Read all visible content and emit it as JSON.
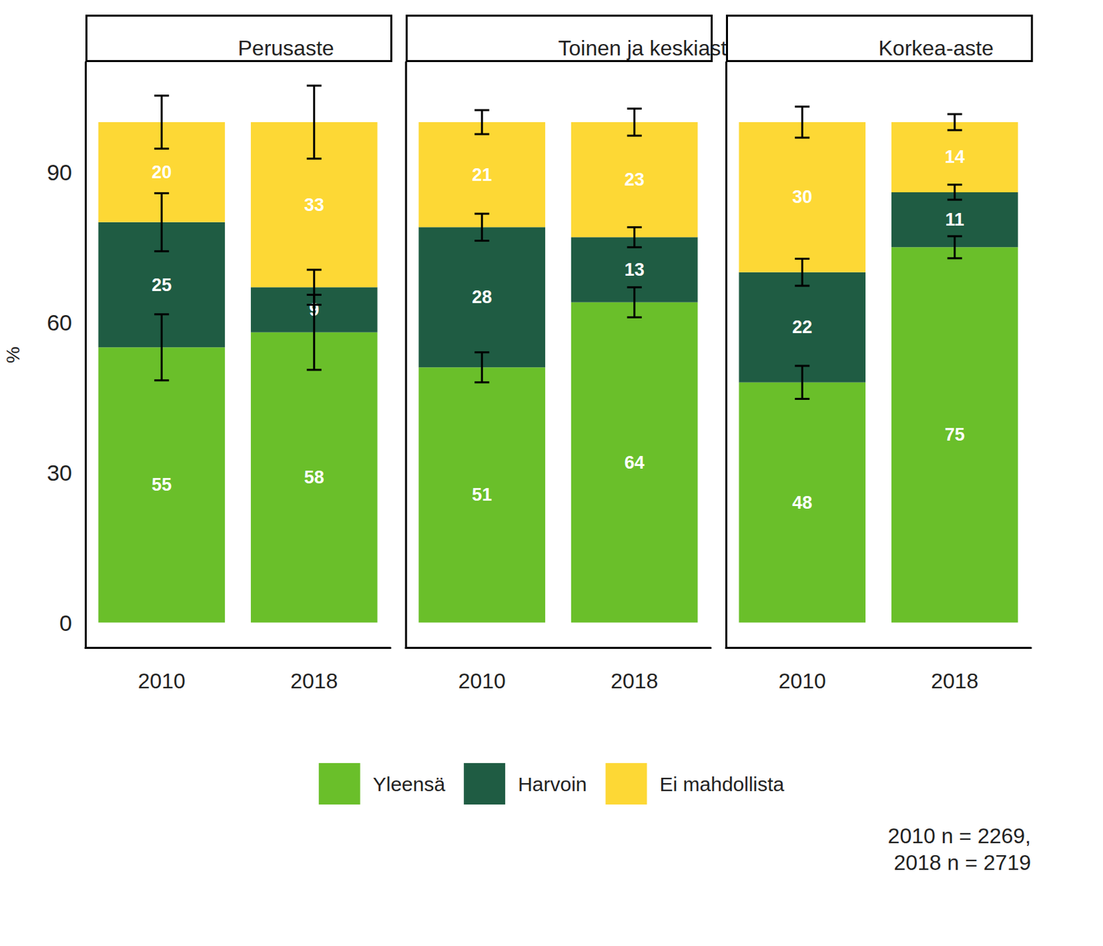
{
  "chart_data": [
    {
      "type": "bar",
      "title": "Perusaste",
      "categories": [
        "2010",
        "2018"
      ],
      "stacked": true,
      "data_labels": true,
      "grid": false,
      "legend": "bottom",
      "ylabel": "%",
      "ylim": [
        -5,
        112
      ],
      "yticks": [
        0,
        30,
        60,
        90
      ],
      "series": [
        {
          "name": "Yleensä",
          "color": "#6abf2a",
          "values": [
            55,
            58
          ],
          "errors": [
            6.6,
            7.5
          ]
        },
        {
          "name": "Harvoin",
          "color": "#1f5c43",
          "values": [
            25,
            9
          ],
          "errors": [
            5.8,
            3.5
          ]
        },
        {
          "name": "Ei mahdollista",
          "color": "#fdd835",
          "values": [
            20,
            33
          ],
          "errors": [
            5.3,
            7.3
          ]
        }
      ]
    },
    {
      "type": "bar",
      "title": "Toinen ja keskiaste",
      "categories": [
        "2010",
        "2018"
      ],
      "stacked": true,
      "data_labels": true,
      "grid": false,
      "tick_labels": "x",
      "ylim": [
        -5,
        112
      ],
      "yticks": [
        0,
        30,
        60,
        90
      ],
      "series": [
        {
          "name": "Yleensä",
          "color": "#6abf2a",
          "values": [
            51,
            64
          ],
          "errors": [
            3.0,
            3.0
          ]
        },
        {
          "name": "Harvoin",
          "color": "#1f5c43",
          "values": [
            28,
            13
          ],
          "errors": [
            2.7,
            2.0
          ]
        },
        {
          "name": "Ei mahdollista",
          "color": "#fdd835",
          "values": [
            21,
            23
          ],
          "errors": [
            2.4,
            2.7
          ]
        }
      ]
    },
    {
      "type": "bar",
      "title": "Korkea-aste",
      "categories": [
        "2010",
        "2018"
      ],
      "stacked": true,
      "data_labels": true,
      "grid": false,
      "tick_labels": "x",
      "ylim": [
        -5,
        112
      ],
      "yticks": [
        0,
        30,
        60,
        90
      ],
      "series": [
        {
          "name": "Yleensä",
          "color": "#6abf2a",
          "values": [
            48,
            75
          ],
          "errors": [
            3.3,
            2.2
          ]
        },
        {
          "name": "Harvoin",
          "color": "#1f5c43",
          "values": [
            22,
            11
          ],
          "errors": [
            2.7,
            1.5
          ]
        },
        {
          "name": "Ei mahdollista",
          "color": "#fdd835",
          "values": [
            30,
            14
          ],
          "errors": [
            3.1,
            1.6
          ]
        }
      ]
    }
  ],
  "note": [
    "2010 n = 2269,",
    "2018 n = 2719"
  ]
}
